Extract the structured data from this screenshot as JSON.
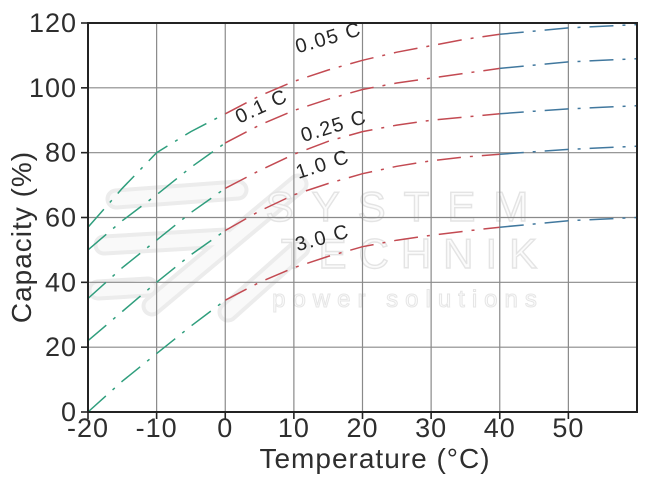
{
  "chart_data": {
    "type": "line",
    "title": "",
    "xlabel": "Temperature (°C)",
    "ylabel": "Capacity (%)",
    "xlim": [
      -20,
      60
    ],
    "ylim": [
      0,
      120
    ],
    "x_ticks": [
      -20,
      -10,
      0,
      10,
      20,
      30,
      40,
      50
    ],
    "y_ticks": [
      0,
      20,
      40,
      60,
      80,
      100,
      120
    ],
    "grid": true,
    "legend": "inline-curve-labels",
    "line_style": "dash-dot",
    "x": [
      -20,
      -15,
      -10,
      -5,
      0,
      5,
      10,
      15,
      20,
      25,
      30,
      35,
      40,
      45,
      50,
      55,
      60
    ],
    "series": [
      {
        "name": "0.05 C",
        "values": [
          57,
          69,
          80,
          86.5,
          92,
          97.5,
          102,
          105.5,
          108.5,
          111,
          113,
          115,
          116.5,
          117.5,
          118.5,
          119,
          119.5
        ]
      },
      {
        "name": "0.1 C",
        "values": [
          50,
          59,
          67,
          75.5,
          83,
          88.5,
          93,
          96.5,
          99.5,
          101.5,
          103,
          104.5,
          106,
          107,
          108,
          108.5,
          109
        ]
      },
      {
        "name": "0.25 C",
        "values": [
          35,
          44.5,
          53,
          61.5,
          69,
          74.5,
          79.5,
          83.5,
          86.5,
          88.5,
          90,
          91,
          92,
          92.8,
          93.5,
          94,
          94.5
        ]
      },
      {
        "name": "1.0 C",
        "values": [
          22,
          31,
          40,
          48.5,
          56,
          62,
          67,
          70.5,
          73.5,
          75.8,
          77.5,
          78.7,
          79.5,
          80.3,
          81,
          81.5,
          82
        ]
      },
      {
        "name": "3.0 C",
        "values": [
          0,
          9.5,
          18,
          26.5,
          34.5,
          40,
          44.5,
          48,
          51,
          53,
          54.5,
          55.8,
          57,
          58,
          59,
          59.5,
          60
        ]
      }
    ],
    "segment_breaks": [
      0,
      40
    ],
    "segment_colors": {
      "cold": "#2f9e7d",
      "mid": "#c34a52",
      "hot": "#41789e"
    },
    "curve_labels": [
      {
        "text": "0.05 C",
        "t": 15.3,
        "c": 113.5,
        "angle": -16
      },
      {
        "text": "0.1 C",
        "t": 5.7,
        "c": 92.5,
        "angle": -25
      },
      {
        "text": "0.25 C",
        "t": 16.1,
        "c": 86.3,
        "angle": -17
      },
      {
        "text": "1.0 C",
        "t": 14.5,
        "c": 74.5,
        "angle": -18
      },
      {
        "text": "3.0 C",
        "t": 14.4,
        "c": 51.8,
        "angle": -15
      }
    ]
  },
  "watermark": {
    "line1": "SYSTEM",
    "line2": "TECHNIK",
    "line3": "power solutions"
  }
}
